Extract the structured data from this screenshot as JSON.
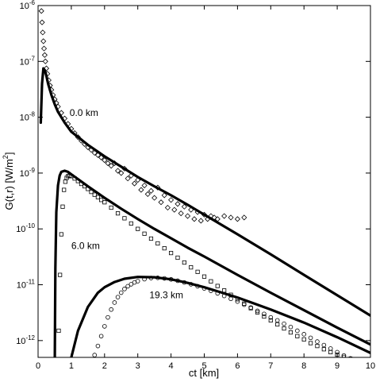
{
  "chart_data": {
    "type": "scatter",
    "title": "",
    "xlabel": "ct [km]",
    "ylabel": "G(t,r) [W/m",
    "ylabel_sup": "2",
    "ylabel_close": "]",
    "xlim": [
      0,
      10
    ],
    "ylim": [
      5e-13,
      1e-06
    ],
    "yscale": "log",
    "grid": false,
    "legend": "none",
    "x_ticks": [
      "0",
      "1",
      "2",
      "3",
      "4",
      "5",
      "6",
      "7",
      "8",
      "9",
      "10"
    ],
    "y_ticks": [
      {
        "base": "10",
        "exp": "-12"
      },
      {
        "base": "10",
        "exp": "-11"
      },
      {
        "base": "10",
        "exp": "-10"
      },
      {
        "base": "10",
        "exp": "-9"
      },
      {
        "base": "10",
        "exp": "-8"
      },
      {
        "base": "10",
        "exp": "-7"
      },
      {
        "base": "10",
        "exp": "-6"
      }
    ],
    "annotations": [
      {
        "text": "0.0 km",
        "x": 0.95,
        "y": 1.2e-08
      },
      {
        "text": "6.0 km",
        "x": 1.0,
        "y": 5e-11
      },
      {
        "text": "19.3 km",
        "x": 3.35,
        "y": 6.5e-12
      }
    ],
    "series": [
      {
        "kind": "line",
        "x": [
          0.08,
          0.12,
          0.16,
          0.2,
          0.25,
          0.3,
          0.4,
          0.5,
          0.6,
          0.8,
          1.0,
          1.5,
          2.0,
          2.5,
          3.0,
          3.5,
          4.0,
          4.5,
          5.0,
          6.0,
          7.0,
          8.0,
          9.0,
          10.0
        ],
        "y": [
          8e-09,
          4e-08,
          7.5e-08,
          7e-08,
          5.5e-08,
          4e-08,
          2.5e-08,
          1.7e-08,
          1.25e-08,
          8e-09,
          5.5e-09,
          3.2e-09,
          2e-09,
          1.3e-09,
          8.5e-10,
          5.8e-10,
          4e-10,
          2.7e-10,
          1.8e-10,
          8e-11,
          3.5e-11,
          1.5e-11,
          6.5e-12,
          2.8e-12
        ]
      },
      {
        "kind": "markers",
        "marker": "diamond",
        "x": [
          0.1,
          0.12,
          0.14,
          0.16,
          0.18,
          0.2,
          0.22,
          0.25,
          0.28,
          0.32,
          0.36,
          0.4,
          0.45,
          0.5,
          0.55,
          0.6,
          0.7,
          0.8,
          0.9,
          1.0,
          1.1,
          1.2,
          1.3,
          1.4,
          1.5,
          1.6,
          1.7,
          1.8,
          1.9,
          2.0,
          2.1,
          2.2,
          2.3,
          2.4,
          2.5,
          2.6,
          2.7,
          2.8,
          2.9,
          3.0,
          3.1,
          3.2,
          3.3,
          3.4,
          3.5,
          3.6,
          3.7,
          3.8,
          3.9,
          4.0,
          4.1,
          4.2,
          4.3,
          4.4,
          4.5,
          4.6,
          4.7,
          4.8,
          4.9,
          5.0,
          5.1,
          5.2,
          5.3,
          5.4,
          5.6,
          5.8,
          6.0,
          6.2
        ],
        "y": [
          8e-07,
          5e-07,
          3.3e-07,
          2.3e-07,
          1.7e-07,
          1.3e-07,
          1e-07,
          7.5e-08,
          6e-08,
          4.6e-08,
          3.7e-08,
          3.1e-08,
          2.5e-08,
          2.1e-08,
          1.8e-08,
          1.55e-08,
          1.2e-08,
          9.5e-09,
          7.6e-09,
          6.2e-09,
          5.2e-09,
          4.4e-09,
          3.8e-09,
          3.3e-09,
          2.9e-09,
          2.6e-09,
          2.3e-09,
          2.1e-09,
          1.9e-09,
          1.7e-09,
          1.5e-09,
          1.35e-09,
          1.5e-09,
          1.1e-09,
          1e-09,
          1.2e-09,
          8e-10,
          9e-10,
          6.5e-10,
          7.5e-10,
          5e-10,
          6e-10,
          4.2e-10,
          4.8e-10,
          3.6e-10,
          5.5e-10,
          3e-10,
          4e-10,
          2.4e-10,
          3.3e-10,
          2.2e-10,
          2.8e-10,
          1.9e-10,
          2.5e-10,
          1.7e-10,
          2.2e-10,
          1.5e-10,
          2e-10,
          1.4e-10,
          1.8e-10,
          1.5e-10,
          1.7e-10,
          1.6e-10,
          1.5e-10,
          1.7e-10,
          1.6e-10,
          1.5e-10,
          1.6e-10
        ]
      },
      {
        "kind": "line",
        "x": [
          0.5,
          0.52,
          0.55,
          0.6,
          0.65,
          0.7,
          0.8,
          0.9,
          1.0,
          1.2,
          1.5,
          2.0,
          2.5,
          3.0,
          3.5,
          4.0,
          4.5,
          5.0,
          6.0,
          7.0,
          8.0,
          9.0,
          10.0
        ],
        "y": [
          3e-13,
          2e-11,
          2e-10,
          6e-10,
          9e-10,
          1.05e-09,
          1.1e-09,
          1.05e-09,
          9.5e-10,
          7.8e-10,
          5.8e-10,
          3.6e-10,
          2.3e-10,
          1.5e-10,
          1e-10,
          6.8e-11,
          4.6e-11,
          3.2e-11,
          1.5e-11,
          7.2e-12,
          3.5e-12,
          1.7e-12,
          8.5e-13
        ]
      },
      {
        "kind": "markers",
        "marker": "square",
        "x": [
          0.62,
          0.66,
          0.7,
          0.74,
          0.78,
          0.82,
          0.86,
          0.9,
          0.95,
          1.0,
          1.1,
          1.2,
          1.3,
          1.4,
          1.5,
          1.6,
          1.7,
          1.8,
          1.9,
          2.0,
          2.2,
          2.4,
          2.6,
          2.8,
          3.0,
          3.2,
          3.4,
          3.6,
          3.8,
          4.0,
          4.2,
          4.4,
          4.6,
          4.8,
          5.0,
          5.2,
          5.4,
          5.6,
          5.8,
          6.0,
          6.2,
          6.4,
          6.6,
          6.8,
          7.0,
          7.2,
          7.4,
          7.6,
          7.8,
          8.0,
          8.2,
          8.4,
          8.6,
          8.8,
          9.0,
          9.2,
          9.4,
          9.6,
          9.8,
          10.0
        ],
        "y": [
          1.5e-12,
          1.5e-11,
          8e-11,
          2.5e-10,
          5e-10,
          7e-10,
          8.2e-10,
          8.8e-10,
          9e-10,
          8.8e-10,
          8e-10,
          7.2e-10,
          6.4e-10,
          5.8e-10,
          5.2e-10,
          4.6e-10,
          4.1e-10,
          3.7e-10,
          3.3e-10,
          3e-10,
          2.4e-10,
          1.9e-10,
          1.55e-10,
          1.25e-10,
          1e-10,
          8.2e-11,
          6.7e-11,
          5.5e-11,
          4.5e-11,
          3.7e-11,
          3.05e-11,
          2.5e-11,
          2.05e-11,
          1.7e-11,
          1.4e-11,
          1.15e-11,
          9.5e-12,
          7.9e-12,
          6.6e-12,
          5.5e-12,
          4.6e-12,
          3.8e-12,
          3.2e-12,
          2.7e-12,
          2.3e-12,
          1.95e-12,
          1.65e-12,
          1.4e-12,
          1.2e-12,
          1.05e-12,
          9e-13,
          8e-13,
          7e-13,
          6.2e-13,
          5.6e-13,
          5.1e-13,
          4.7e-13,
          4.4e-13,
          4.2e-13,
          4e-13
        ]
      },
      {
        "kind": "line",
        "x": [
          1.0,
          1.2,
          1.5,
          1.8,
          2.0,
          2.3,
          2.6,
          3.0,
          3.5,
          4.0,
          4.5,
          5.0,
          5.5,
          6.0,
          7.0,
          8.0,
          9.0,
          10.0
        ],
        "y": [
          5e-13,
          1.5e-12,
          4e-12,
          7.2e-12,
          9e-12,
          1.12e-11,
          1.28e-11,
          1.38e-11,
          1.36e-11,
          1.25e-11,
          1.08e-11,
          9e-12,
          7.3e-12,
          5.9e-12,
          3.6e-12,
          2.1e-12,
          1.15e-12,
          6e-13
        ]
      },
      {
        "kind": "markers",
        "marker": "circle",
        "x": [
          1.7,
          1.8,
          1.9,
          2.0,
          2.1,
          2.2,
          2.3,
          2.4,
          2.5,
          2.6,
          2.7,
          2.8,
          2.9,
          3.0,
          3.2,
          3.4,
          3.6,
          3.8,
          4.0,
          4.2,
          4.4,
          4.6,
          4.8,
          5.0,
          5.2,
          5.4,
          5.6,
          5.8,
          6.0,
          6.2,
          6.4,
          6.6,
          6.8,
          7.0,
          7.2,
          7.4,
          7.6,
          7.8,
          8.0,
          8.2,
          8.4,
          8.6,
          8.8,
          9.0,
          9.2,
          9.4,
          9.6,
          9.8,
          10.0
        ],
        "y": [
          5.5e-13,
          8e-13,
          1.2e-12,
          1.8e-12,
          2.6e-12,
          3.6e-12,
          4.8e-12,
          6e-12,
          7.2e-12,
          8.4e-12,
          9.4e-12,
          1.02e-11,
          1.1e-11,
          1.16e-11,
          1.26e-11,
          1.32e-11,
          1.33e-11,
          1.3e-11,
          1.25e-11,
          1.18e-11,
          1.1e-11,
          1.02e-11,
          9.4e-12,
          8.6e-12,
          7.8e-12,
          7e-12,
          6.3e-12,
          5.6e-12,
          5e-12,
          4.4e-12,
          3.9e-12,
          3.4e-12,
          3e-12,
          2.6e-12,
          2.3e-12,
          2e-12,
          1.75e-12,
          1.5e-12,
          1.3e-12,
          1.12e-12,
          9.6e-13,
          8.3e-13,
          7.2e-13,
          6.2e-13,
          5.4e-13,
          4.8e-13,
          4.4e-13,
          4.2e-13,
          4.3e-13
        ]
      }
    ]
  }
}
